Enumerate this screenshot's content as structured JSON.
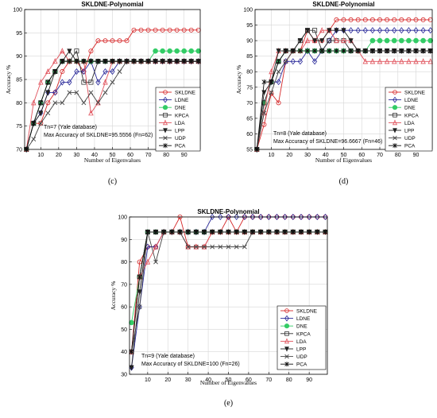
{
  "chart_data": [
    {
      "type": "line",
      "panel_label": "(c)",
      "title": "SKLDNE-Polynomial",
      "xlabel": "Number of Eigenvalues",
      "ylabel": "Accuracy %",
      "xlim": [
        1,
        99
      ],
      "ylim": [
        70,
        100
      ],
      "xticks": [
        10,
        20,
        30,
        40,
        50,
        60,
        70,
        80,
        90
      ],
      "yticks": [
        70,
        75,
        80,
        85,
        90,
        95,
        100
      ],
      "grid": true,
      "legend_position": "bottom-right",
      "annotation_lines": [
        "Tn=7 (Yale database)",
        "Max Accuracy of SKLDNE=95.5556 (Fn=62)"
      ],
      "x": [
        2,
        6,
        10,
        14,
        18,
        22,
        26,
        30,
        34,
        38,
        42,
        46,
        50,
        54,
        58,
        62,
        66,
        70,
        74,
        78,
        82,
        86,
        90,
        94,
        98
      ],
      "series": [
        {
          "name": "SKLDNE",
          "color": "#d62728",
          "marker": "circle",
          "values": [
            70,
            75.6,
            75.6,
            80,
            82.2,
            86.7,
            88.9,
            88.9,
            86.7,
            91.1,
            93.3,
            93.3,
            93.3,
            93.3,
            93.3,
            95.6,
            95.6,
            95.6,
            95.6,
            95.6,
            95.6,
            95.6,
            95.6,
            95.6,
            95.6
          ]
        },
        {
          "name": "LDNE",
          "color": "#2a2a9a",
          "marker": "diamond",
          "values": [
            70,
            75.6,
            77.8,
            82.2,
            82.2,
            84.4,
            84.4,
            86.7,
            86.7,
            88.9,
            84.4,
            86.7,
            86.7,
            88.9,
            88.9,
            88.9,
            88.9,
            88.9,
            88.9,
            88.9,
            88.9,
            88.9,
            88.9,
            88.9,
            88.9
          ]
        },
        {
          "name": "DNE",
          "color": "#33cc66",
          "marker": "circle-filled",
          "values": [
            70,
            75.6,
            80,
            84.4,
            86.7,
            88.9,
            88.9,
            88.9,
            88.9,
            88.9,
            88.9,
            88.9,
            88.9,
            88.9,
            88.9,
            88.9,
            88.9,
            88.9,
            91.1,
            91.1,
            91.1,
            91.1,
            91.1,
            91.1,
            91.1
          ]
        },
        {
          "name": "KPCA",
          "color": "#333333",
          "marker": "square",
          "values": [
            70,
            75.6,
            80,
            84.4,
            86.7,
            88.9,
            88.9,
            91.1,
            84.4,
            84.4,
            88.9,
            88.9,
            88.9,
            88.9,
            88.9,
            88.9,
            88.9,
            88.9,
            88.9,
            88.9,
            88.9,
            88.9,
            88.9,
            88.9,
            88.9
          ]
        },
        {
          "name": "LDA",
          "color": "#e0505a",
          "marker": "triangle",
          "values": [
            70,
            80,
            84.4,
            86.7,
            88.9,
            91.1,
            88.9,
            88.9,
            88.9,
            77.8,
            80,
            84.4,
            88.9,
            88.9,
            88.9,
            88.9,
            88.9,
            88.9,
            88.9,
            88.9,
            88.9,
            88.9,
            88.9,
            88.9,
            88.9
          ]
        },
        {
          "name": "LPP",
          "color": "#222222",
          "marker": "triangle-down",
          "values": [
            70,
            75.6,
            77.8,
            82.2,
            86.7,
            88.9,
            91.1,
            88.9,
            88.9,
            88.9,
            88.9,
            88.9,
            88.9,
            88.9,
            88.9,
            88.9,
            88.9,
            88.9,
            88.9,
            88.9,
            88.9,
            88.9,
            88.9,
            88.9,
            88.9
          ]
        },
        {
          "name": "UDP",
          "color": "#444444",
          "marker": "x",
          "values": [
            70,
            72.2,
            75.6,
            77.8,
            80,
            80,
            82.2,
            82.2,
            80,
            82.2,
            80,
            82.2,
            84.4,
            86.7,
            88.9,
            88.9,
            88.9,
            88.9,
            88.9,
            88.9,
            88.9,
            88.9,
            88.9,
            88.9,
            88.9
          ]
        },
        {
          "name": "PCA",
          "color": "#111111",
          "marker": "star",
          "values": [
            70,
            75.6,
            80,
            84.4,
            86.7,
            88.9,
            88.9,
            88.9,
            88.9,
            88.9,
            88.9,
            88.9,
            88.9,
            88.9,
            88.9,
            88.9,
            88.9,
            88.9,
            88.9,
            88.9,
            88.9,
            88.9,
            88.9,
            88.9,
            88.9
          ]
        }
      ]
    },
    {
      "type": "line",
      "panel_label": "(d)",
      "title": "SKLDNE-Polynomial",
      "xlabel": "Number of Eigenvalues",
      "ylabel": "Accuracy %",
      "xlim": [
        1,
        99
      ],
      "ylim": [
        55,
        100
      ],
      "xticks": [
        10,
        20,
        30,
        40,
        50,
        60,
        70,
        80,
        90
      ],
      "yticks": [
        55,
        60,
        65,
        70,
        75,
        80,
        85,
        90,
        95,
        100
      ],
      "grid": true,
      "legend_position": "bottom-right",
      "annotation_lines": [
        "Tn=8 (Yale database)",
        "Max Accuracy of SKLDNE=96.6667 (Fn=46)"
      ],
      "x": [
        2,
        6,
        10,
        14,
        18,
        22,
        26,
        30,
        34,
        38,
        42,
        46,
        50,
        54,
        58,
        62,
        66,
        70,
        74,
        78,
        82,
        86,
        90,
        94,
        98
      ],
      "series": [
        {
          "name": "SKLDNE",
          "color": "#d62728",
          "marker": "circle",
          "values": [
            55,
            63,
            73,
            70,
            83.3,
            86.7,
            86.7,
            93.3,
            90,
            90,
            93.3,
            96.7,
            96.7,
            96.7,
            96.7,
            96.7,
            96.7,
            96.7,
            96.7,
            96.7,
            96.7,
            96.7,
            96.7,
            96.7,
            96.7
          ]
        },
        {
          "name": "LDNE",
          "color": "#2a2a9a",
          "marker": "diamond",
          "values": [
            55,
            70,
            76.7,
            76.7,
            83.3,
            83.3,
            83.3,
            86.7,
            83.3,
            86.7,
            90,
            93.3,
            93.3,
            93.3,
            93.3,
            93.3,
            93.3,
            93.3,
            93.3,
            93.3,
            93.3,
            93.3,
            93.3,
            93.3,
            93.3
          ]
        },
        {
          "name": "DNE",
          "color": "#33cc66",
          "marker": "circle-filled",
          "values": [
            55,
            70,
            76.7,
            83.3,
            86.7,
            86.7,
            86.7,
            86.7,
            86.7,
            86.7,
            86.7,
            86.7,
            86.7,
            86.7,
            86.7,
            86.7,
            90,
            90,
            90,
            90,
            90,
            90,
            90,
            90,
            90
          ]
        },
        {
          "name": "KPCA",
          "color": "#333333",
          "marker": "square",
          "values": [
            55,
            70,
            76.7,
            83.3,
            86.7,
            86.7,
            90,
            93.3,
            93.3,
            86.7,
            90,
            90,
            90,
            86.7,
            86.7,
            86.7,
            86.7,
            86.7,
            86.7,
            86.7,
            86.7,
            86.7,
            86.7,
            86.7,
            86.7
          ]
        },
        {
          "name": "LDA",
          "color": "#e0505a",
          "marker": "triangle",
          "values": [
            55,
            66.7,
            80,
            86.7,
            86.7,
            86.7,
            86.7,
            90,
            90,
            93.3,
            93.3,
            90,
            90,
            90,
            86.7,
            83.3,
            83.3,
            83.3,
            83.3,
            83.3,
            83.3,
            83.3,
            83.3,
            83.3,
            83.3
          ]
        },
        {
          "name": "LPP",
          "color": "#222222",
          "marker": "triangle-down",
          "values": [
            55,
            73.3,
            76.7,
            86.7,
            86.7,
            86.7,
            90,
            93.3,
            90,
            90,
            93.3,
            93.3,
            93.3,
            90,
            86.7,
            86.7,
            86.7,
            86.7,
            86.7,
            86.7,
            86.7,
            86.7,
            86.7,
            86.7,
            86.7
          ]
        },
        {
          "name": "UDP",
          "color": "#444444",
          "marker": "x",
          "values": [
            55,
            66.7,
            73.3,
            80,
            83.3,
            86.7,
            86.7,
            86.7,
            86.7,
            86.7,
            86.7,
            86.7,
            86.7,
            86.7,
            86.7,
            86.7,
            86.7,
            86.7,
            86.7,
            86.7,
            86.7,
            86.7,
            86.7,
            86.7,
            86.7
          ]
        },
        {
          "name": "PCA",
          "color": "#111111",
          "marker": "star",
          "values": [
            55,
            76.7,
            76.7,
            83.3,
            86.7,
            86.7,
            86.7,
            86.7,
            86.7,
            86.7,
            86.7,
            86.7,
            86.7,
            86.7,
            86.7,
            86.7,
            86.7,
            86.7,
            86.7,
            86.7,
            86.7,
            86.7,
            86.7,
            86.7,
            86.7
          ]
        }
      ]
    },
    {
      "type": "line",
      "panel_label": "(e)",
      "title": "SKLDNE-Polynomial",
      "xlabel": "Number of Eigenvalues",
      "ylabel": "Accuracy %",
      "xlim": [
        1,
        99
      ],
      "ylim": [
        30,
        100
      ],
      "xticks": [
        10,
        20,
        30,
        40,
        50,
        60,
        70,
        80,
        90
      ],
      "yticks": [
        30,
        40,
        50,
        60,
        70,
        80,
        90,
        100
      ],
      "grid": true,
      "legend_position": "bottom-right",
      "annotation_lines": [
        "Tn=9 (Yale database)",
        "Max Accuracy of SKLDNE=100 (Fn=26)"
      ],
      "x": [
        2,
        6,
        10,
        14,
        18,
        22,
        26,
        30,
        34,
        38,
        42,
        46,
        50,
        54,
        58,
        62,
        66,
        70,
        74,
        78,
        82,
        86,
        90,
        94,
        98
      ],
      "series": [
        {
          "name": "SKLDNE",
          "color": "#d62728",
          "marker": "circle",
          "values": [
            40,
            80,
            86.7,
            86.7,
            93.3,
            93.3,
            100,
            86.7,
            86.7,
            86.7,
            93.3,
            93.3,
            100,
            93.3,
            100,
            100,
            100,
            100,
            100,
            100,
            100,
            100,
            100,
            100,
            100
          ]
        },
        {
          "name": "LDNE",
          "color": "#2a2a9a",
          "marker": "diamond",
          "values": [
            33,
            60,
            86.7,
            86.7,
            93.3,
            93.3,
            93.3,
            93.3,
            93.3,
            93.3,
            100,
            100,
            100,
            100,
            100,
            100,
            100,
            100,
            100,
            100,
            100,
            100,
            100,
            100,
            100
          ]
        },
        {
          "name": "DNE",
          "color": "#33cc66",
          "marker": "circle-filled",
          "values": [
            53,
            73.3,
            93.3,
            93.3,
            93.3,
            93.3,
            93.3,
            93.3,
            93.3,
            93.3,
            93.3,
            93.3,
            93.3,
            93.3,
            93.3,
            93.3,
            93.3,
            93.3,
            93.3,
            93.3,
            93.3,
            93.3,
            93.3,
            93.3,
            93.3
          ]
        },
        {
          "name": "KPCA",
          "color": "#333333",
          "marker": "square",
          "values": [
            40,
            73.3,
            93.3,
            93.3,
            93.3,
            93.3,
            93.3,
            93.3,
            93.3,
            93.3,
            93.3,
            93.3,
            93.3,
            93.3,
            93.3,
            93.3,
            93.3,
            93.3,
            93.3,
            93.3,
            93.3,
            93.3,
            93.3,
            93.3,
            93.3
          ]
        },
        {
          "name": "LDA",
          "color": "#e0505a",
          "marker": "triangle",
          "values": [
            40,
            73.3,
            80,
            86.7,
            93.3,
            93.3,
            93.3,
            86.7,
            86.7,
            86.7,
            93.3,
            93.3,
            93.3,
            93.3,
            93.3,
            93.3,
            93.3,
            93.3,
            93.3,
            93.3,
            93.3,
            93.3,
            93.3,
            93.3,
            93.3
          ]
        },
        {
          "name": "LPP",
          "color": "#222222",
          "marker": "triangle-down",
          "values": [
            33,
            66.7,
            93.3,
            93.3,
            93.3,
            93.3,
            93.3,
            93.3,
            93.3,
            93.3,
            93.3,
            93.3,
            93.3,
            93.3,
            93.3,
            93.3,
            93.3,
            93.3,
            93.3,
            93.3,
            93.3,
            93.3,
            93.3,
            93.3,
            93.3
          ]
        },
        {
          "name": "UDP",
          "color": "#444444",
          "marker": "x",
          "values": [
            40,
            60,
            93.3,
            80,
            93.3,
            93.3,
            93.3,
            86.7,
            86.7,
            86.7,
            86.7,
            86.7,
            86.7,
            86.7,
            86.7,
            93.3,
            93.3,
            93.3,
            93.3,
            93.3,
            93.3,
            93.3,
            93.3,
            93.3,
            93.3
          ]
        },
        {
          "name": "PCA",
          "color": "#111111",
          "marker": "star",
          "values": [
            40,
            73.3,
            93.3,
            93.3,
            93.3,
            93.3,
            93.3,
            93.3,
            93.3,
            93.3,
            93.3,
            93.3,
            93.3,
            93.3,
            93.3,
            93.3,
            93.3,
            93.3,
            93.3,
            93.3,
            93.3,
            93.3,
            93.3,
            93.3,
            93.3
          ]
        }
      ]
    }
  ]
}
